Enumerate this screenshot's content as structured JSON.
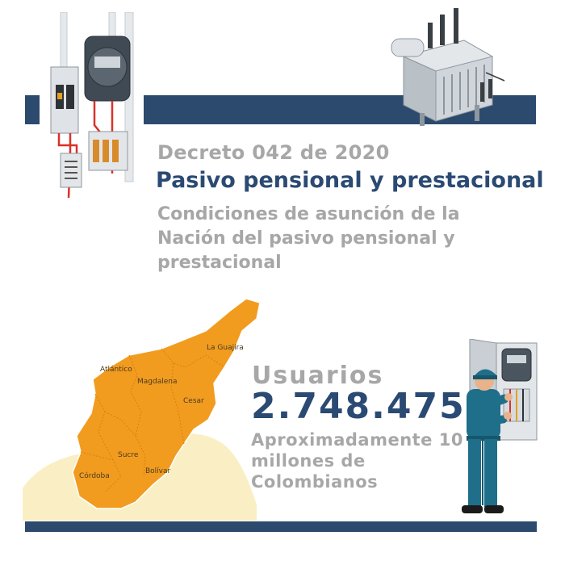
{
  "header": {
    "decree": "Decreto 042 de 2020",
    "subject": "Pasivo pensional y prestacional",
    "description": "Condiciones de asunción de la Nación del pasivo pensional y prestacional"
  },
  "map": {
    "departments": [
      "La Guajira",
      "Atlántico",
      "Magdalena",
      "Cesar",
      "Sucre",
      "Córdoba",
      "Bolívar"
    ]
  },
  "users": {
    "label": "Usuarios",
    "count": "2.748.475",
    "note": "Aproximadamente 10 millones de Colombianos"
  },
  "colors": {
    "navy": "#2c4a6e",
    "gray_text": "#a7a7a7",
    "map_orange": "#f19c1f",
    "map_background": "#faefc4"
  },
  "icons": [
    "electrical-panel-illustration",
    "transformer-illustration",
    "technician-illustration"
  ]
}
